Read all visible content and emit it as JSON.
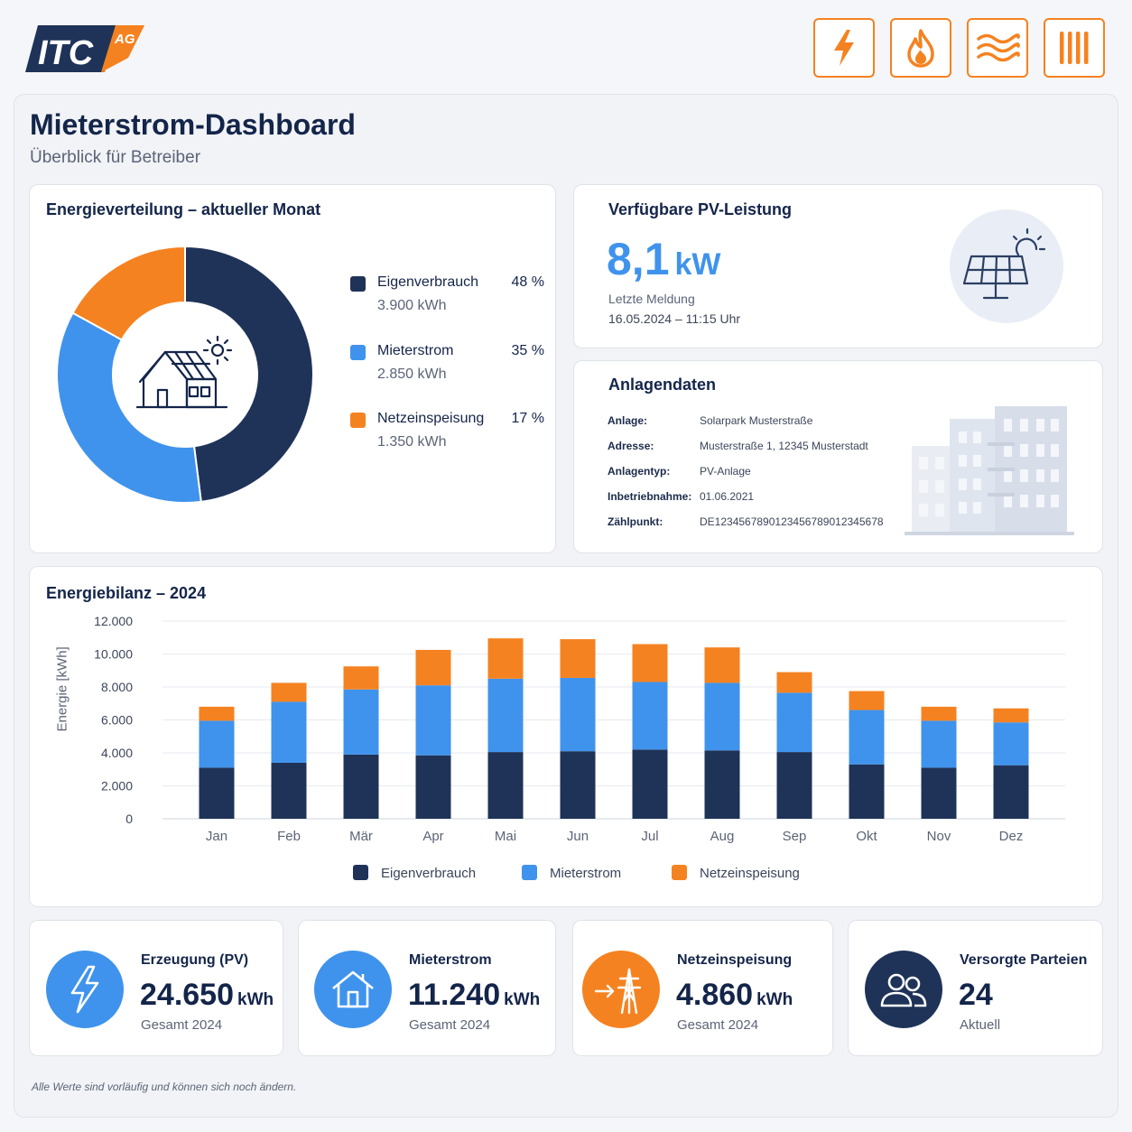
{
  "brand": {
    "logo_text": "ITC",
    "logo_suffix": "AG",
    "colors": {
      "navy": "#1f3358",
      "blue": "#3f93ec",
      "orange": "#f58220"
    }
  },
  "utility_icons": [
    "power-icon",
    "gas-flame-icon",
    "heat-waves-icon",
    "water-bars-icon"
  ],
  "page": {
    "title": "Mieterstrom-Dashboard",
    "subtitle": "Überblick für Betreiber"
  },
  "distribution": {
    "title": "Energieverteilung – aktueller Monat",
    "items": [
      {
        "name": "Eigenverbrauch",
        "pct": "48 %",
        "kwh": "3.900 kWh",
        "share": 48,
        "color": "#1f3358"
      },
      {
        "name": "Mieterstrom",
        "pct": "35 %",
        "kwh": "2.850 kWh",
        "share": 35,
        "color": "#3f93ec"
      },
      {
        "name": "Netzeinspeisung",
        "pct": "17 %",
        "kwh": "1.350 kWh",
        "share": 17,
        "color": "#f58220"
      }
    ]
  },
  "pv": {
    "title": "Verfügbare PV-Leistung",
    "value": "8,1",
    "unit": "kW",
    "last_label": "Letzte Meldung",
    "last_time": "16.05.2024 – 11:15 Uhr"
  },
  "plant": {
    "title": "Anlagendaten",
    "rows": [
      {
        "label": "Anlage:",
        "value": "Solarpark Musterstraße"
      },
      {
        "label": "Adresse:",
        "value": "Musterstraße 1, 12345 Musterstadt"
      },
      {
        "label": "Anlagentyp:",
        "value": "PV-Anlage"
      },
      {
        "label": "Inbetriebnahme:",
        "value": "01.06.2021"
      },
      {
        "label": "Zählpunkt:",
        "value": "DE1234567890123456789012345678"
      }
    ]
  },
  "chart_data": {
    "type": "bar",
    "stacked": true,
    "title": "Energiebilanz – 2024",
    "xlabel": "",
    "ylabel": "Energie [kWh]",
    "ylim": [
      0,
      12000
    ],
    "yticks": [
      0,
      2000,
      4000,
      6000,
      8000,
      10000,
      12000
    ],
    "ytick_labels": [
      "0",
      "2.000",
      "4.000",
      "6.000",
      "8.000",
      "10.000",
      "12.000"
    ],
    "grid": true,
    "legend": "bottom",
    "categories": [
      "Jan",
      "Feb",
      "Mär",
      "Apr",
      "Mai",
      "Jun",
      "Jul",
      "Aug",
      "Sep",
      "Okt",
      "Nov",
      "Dez"
    ],
    "series": [
      {
        "name": "Eigenverbrauch",
        "color": "#1f3358",
        "values": [
          3100,
          3400,
          3900,
          3850,
          4050,
          4100,
          4200,
          4150,
          4050,
          3300,
          3100,
          3250
        ]
      },
      {
        "name": "Mieterstrom",
        "color": "#3f93ec",
        "values": [
          2850,
          3700,
          3950,
          4250,
          4450,
          4450,
          4100,
          4100,
          3600,
          3300,
          2850,
          2600
        ]
      },
      {
        "name": "Netzeinspeisung",
        "color": "#f58220",
        "values": [
          850,
          1150,
          1400,
          2150,
          2450,
          2350,
          2300,
          2150,
          1250,
          1150,
          850,
          850
        ]
      }
    ]
  },
  "kpis": [
    {
      "title": "Erzeugung (PV)",
      "value": "24.650",
      "unit": "kWh",
      "sub": "Gesamt 2024"
    },
    {
      "title": "Mieterstrom",
      "value": "11.240",
      "unit": "kWh",
      "sub": "Gesamt 2024"
    },
    {
      "title": "Netzeinspeisung",
      "value": "4.860",
      "unit": "kWh",
      "sub": "Gesamt 2024"
    },
    {
      "title": "Versorgte Parteien",
      "value": "24",
      "unit": "",
      "sub": "Aktuell"
    }
  ],
  "footnote": "Alle Werte sind vorläufig und können sich noch ändern."
}
